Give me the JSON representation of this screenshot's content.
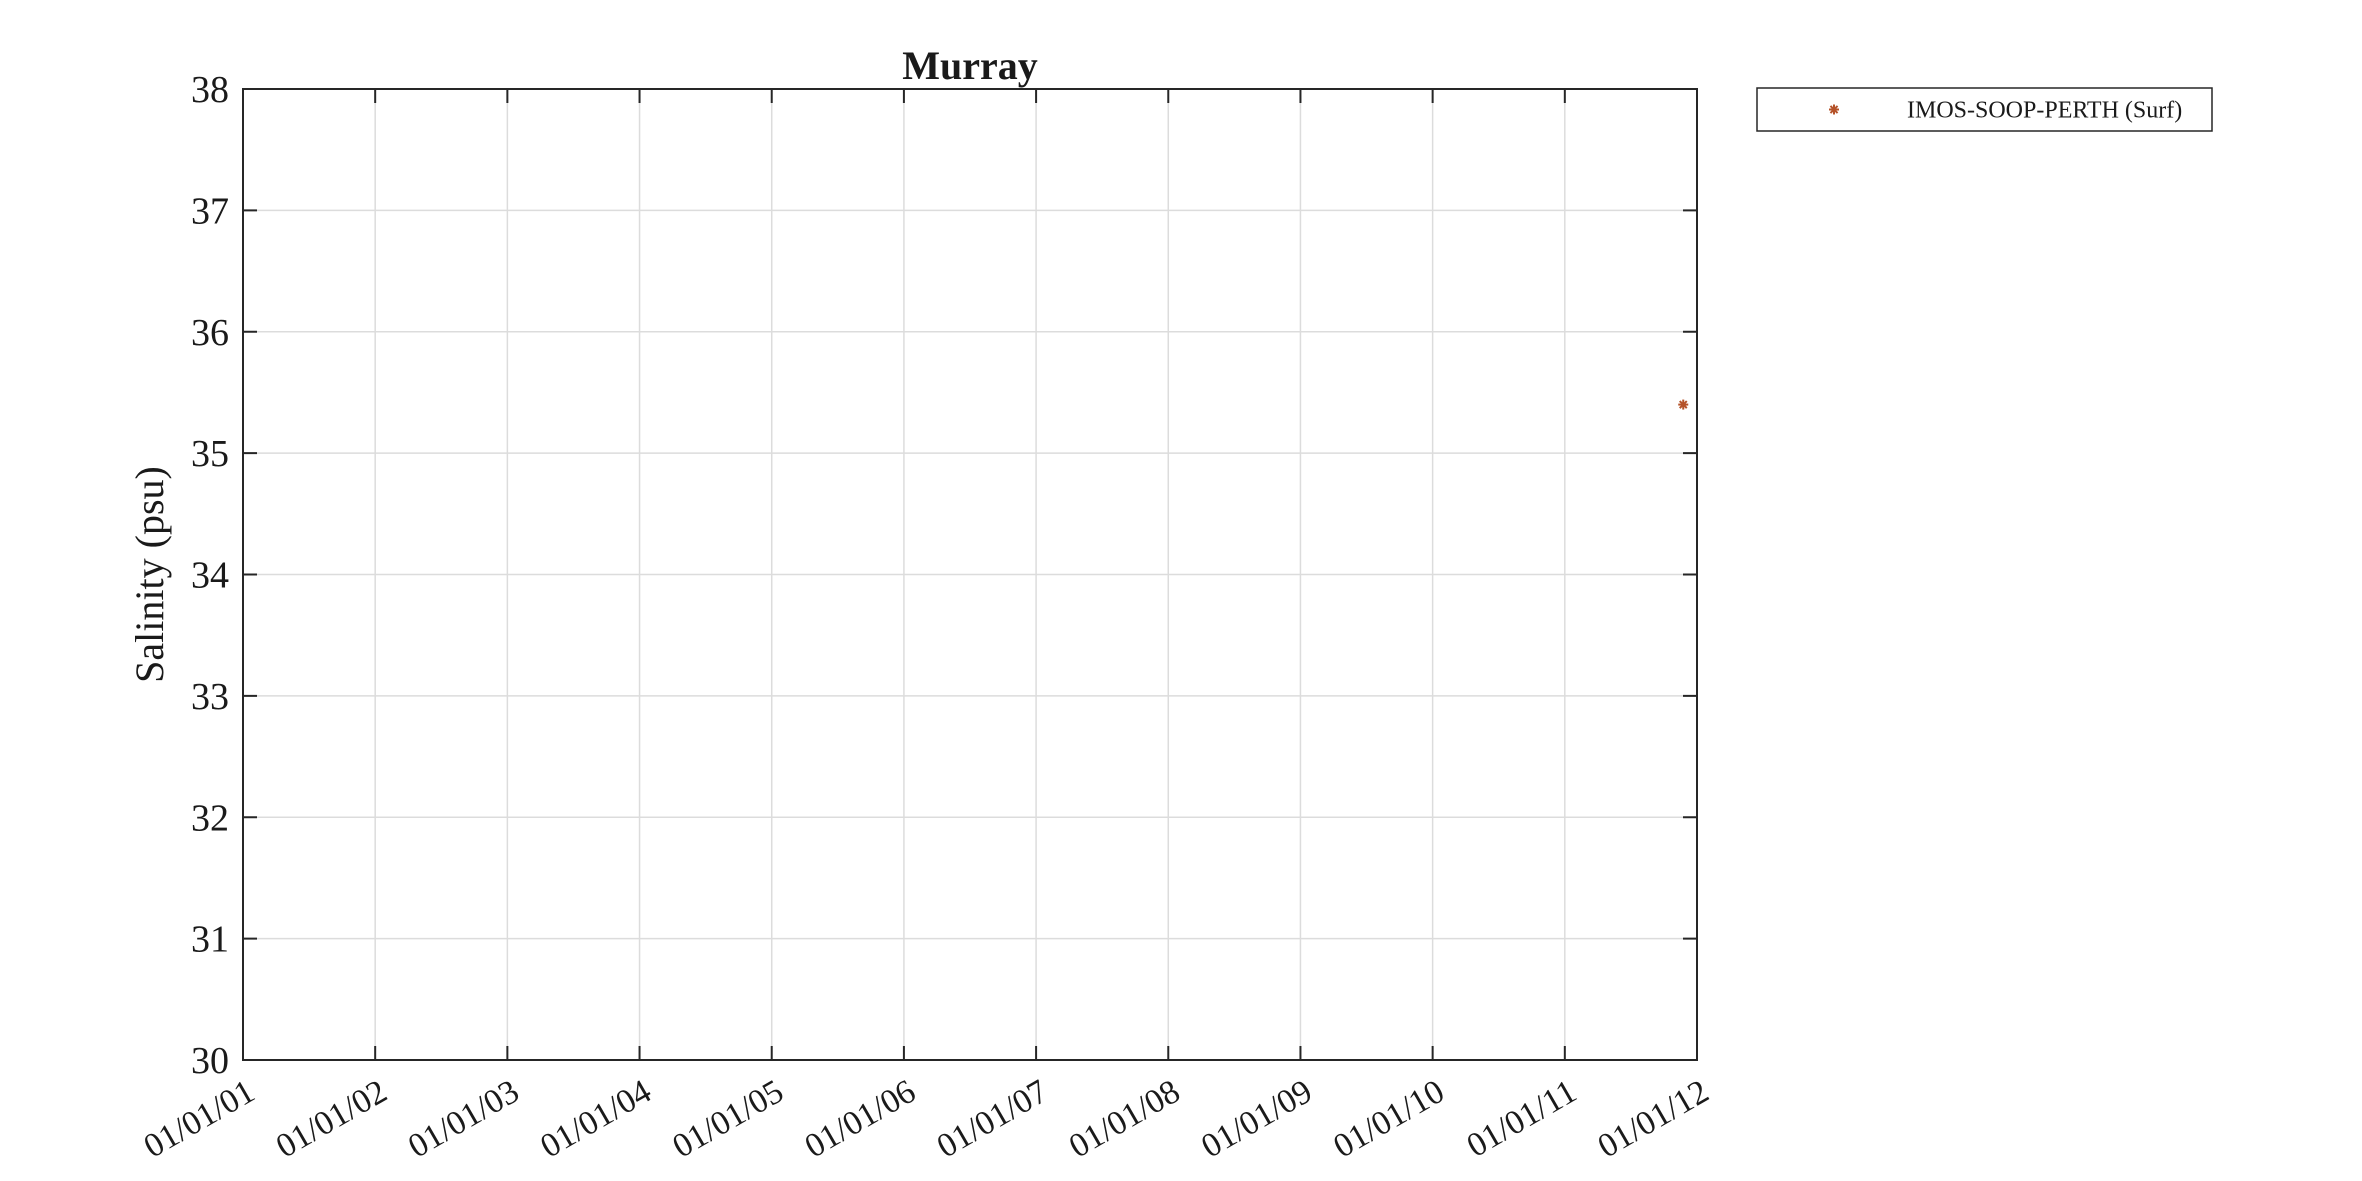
{
  "chart_data": {
    "type": "scatter",
    "title": "Murray",
    "xlabel": "",
    "ylabel": "Salinity (psu)",
    "x_ticks": [
      "01/01/01",
      "01/01/02",
      "01/01/03",
      "01/01/04",
      "01/01/05",
      "01/01/06",
      "01/01/07",
      "01/01/08",
      "01/01/09",
      "01/01/10",
      "01/01/11",
      "01/01/12"
    ],
    "xlim": [
      "2001-01-01",
      "2012-01-01"
    ],
    "ylim": [
      30,
      38
    ],
    "y_ticks": [
      30,
      31,
      32,
      33,
      34,
      35,
      36,
      37,
      38
    ],
    "grid": true,
    "legend": {
      "placement": "outside-top-right"
    },
    "series": [
      {
        "name": "IMOS-SOOP-PERTH (Surf)",
        "marker": "*",
        "color": "#b5532a",
        "points": [
          {
            "x": "2011-11-24",
            "y": 35.4
          }
        ]
      }
    ]
  }
}
